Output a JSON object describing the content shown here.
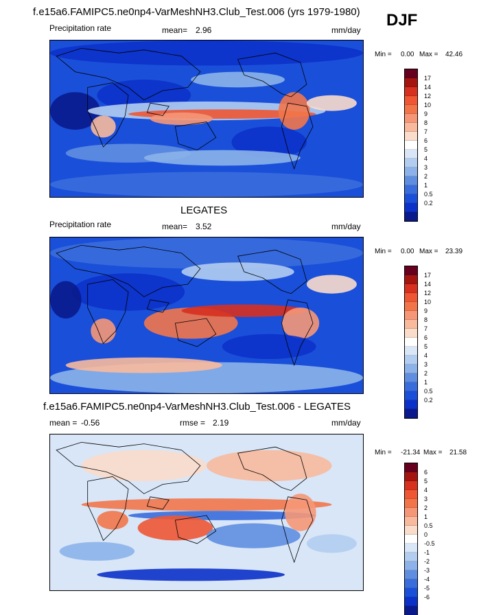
{
  "season": "DJF",
  "chart_data": [
    {
      "type": "heatmap",
      "title": "f.e15a6.FAMIPC5.ne0np4-VarMeshNH3.Club_Test.006 (yrs 1979-1980)",
      "left_label": "Precipitation rate",
      "stat_label": "mean=",
      "stat_value": "2.96",
      "units": "mm/day",
      "min_label": "Min =",
      "min_value": "0.00",
      "max_label": "Max =",
      "max_value": "42.46",
      "colorbar_ticks": [
        "17",
        "14",
        "12",
        "10",
        "9",
        "8",
        "7",
        "6",
        "5",
        "4",
        "3",
        "2",
        "1",
        "0.5",
        "0.2"
      ],
      "colors": [
        "#67001f",
        "#a5150f",
        "#d7301f",
        "#ee5634",
        "#f2754a",
        "#f59777",
        "#f8b99c",
        "#fadccb",
        "#ffffff",
        "#d8e6f7",
        "#b2cdf0",
        "#8cb2e9",
        "#5f8ee0",
        "#3a6ddc",
        "#1a4fd9",
        "#0c31c9",
        "#0a1a8c"
      ]
    },
    {
      "type": "heatmap",
      "title": "LEGATES",
      "left_label": "Precipitation rate",
      "stat_label": "mean=",
      "stat_value": "3.52",
      "units": "mm/day",
      "min_label": "Min =",
      "min_value": "0.00",
      "max_label": "Max =",
      "max_value": "23.39",
      "colorbar_ticks": [
        "17",
        "14",
        "12",
        "10",
        "9",
        "8",
        "7",
        "6",
        "5",
        "4",
        "3",
        "2",
        "1",
        "0.5",
        "0.2"
      ],
      "colors": [
        "#67001f",
        "#a5150f",
        "#d7301f",
        "#ee5634",
        "#f2754a",
        "#f59777",
        "#f8b99c",
        "#fadccb",
        "#ffffff",
        "#d8e6f7",
        "#b2cdf0",
        "#8cb2e9",
        "#5f8ee0",
        "#3a6ddc",
        "#1a4fd9",
        "#0c31c9",
        "#0a1a8c"
      ]
    },
    {
      "type": "heatmap",
      "title": "f.e15a6.FAMIPC5.ne0np4-VarMeshNH3.Club_Test.006 - LEGATES",
      "stat_label": "mean =",
      "stat_value": "-0.56",
      "stat2_label": "rmse =",
      "stat2_value": "2.19",
      "units": "mm/day",
      "min_label": "Min =",
      "min_value": "-21.34",
      "max_label": "Max =",
      "max_value": "21.58",
      "colorbar_ticks": [
        "6",
        "5",
        "4",
        "3",
        "2",
        "1",
        "0.5",
        "0",
        "-0.5",
        "-1",
        "-2",
        "-3",
        "-4",
        "-5",
        "-6"
      ],
      "colors": [
        "#67001f",
        "#a5150f",
        "#d7301f",
        "#ee5634",
        "#f2754a",
        "#f59777",
        "#f8b99c",
        "#fadccb",
        "#ffffff",
        "#d8e6f7",
        "#b2cdf0",
        "#8cb2e9",
        "#5f8ee0",
        "#3a6ddc",
        "#1a4fd9",
        "#0c31c9",
        "#0a1a8c"
      ]
    }
  ]
}
